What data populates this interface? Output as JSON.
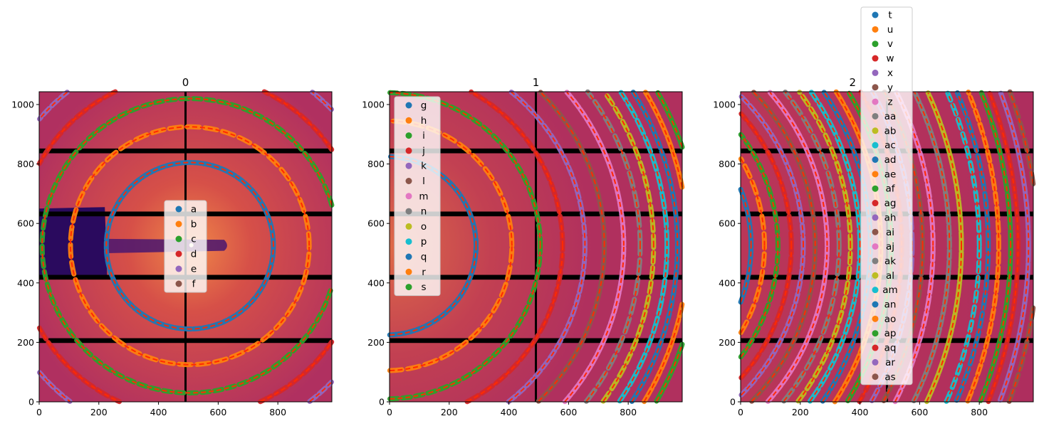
{
  "chart_data": [
    {
      "type": "image-with-ring-overlay",
      "title": "0",
      "xlim": [
        0,
        981
      ],
      "ylim": [
        0,
        1043
      ],
      "xticks": [
        0,
        200,
        400,
        600,
        800
      ],
      "yticks": [
        0,
        200,
        400,
        600,
        800,
        1000
      ],
      "ring_center": [
        505,
        525
      ],
      "rings": [
        {
          "name": "a",
          "color": "#1f77b4",
          "radius": 280
        },
        {
          "name": "b",
          "color": "#ff7f0e",
          "radius": 400
        },
        {
          "name": "c",
          "color": "#2ca02c",
          "radius": 495
        },
        {
          "name": "d",
          "color": "#d62728",
          "radius": 575
        },
        {
          "name": "e",
          "color": "#9467bd",
          "radius": 660
        },
        {
          "name": "f",
          "color": "#8c564b",
          "radius": 730
        }
      ],
      "legend_placement": "center"
    },
    {
      "type": "image-with-ring-overlay",
      "title": "1",
      "xlim": [
        0,
        981
      ],
      "ylim": [
        0,
        1043
      ],
      "xticks": [
        0,
        200,
        400,
        600,
        800
      ],
      "yticks": [
        0,
        200,
        400,
        600,
        800,
        1000
      ],
      "ring_center": [
        -10,
        525
      ],
      "rings": [
        {
          "name": "g",
          "color": "#1f77b4",
          "radius": 300
        },
        {
          "name": "h",
          "color": "#ff7f0e",
          "radius": 420
        },
        {
          "name": "i",
          "color": "#2ca02c",
          "radius": 515
        },
        {
          "name": "j",
          "color": "#d62728",
          "radius": 590
        },
        {
          "name": "k",
          "color": "#9467bd",
          "radius": 665
        },
        {
          "name": "l",
          "color": "#8c564b",
          "radius": 730
        },
        {
          "name": "m",
          "color": "#e377c2",
          "radius": 795
        },
        {
          "name": "n",
          "color": "#7f7f7f",
          "radius": 850
        },
        {
          "name": "o",
          "color": "#bcbd22",
          "radius": 895
        },
        {
          "name": "p",
          "color": "#17becf",
          "radius": 940
        },
        {
          "name": "q",
          "color": "#1f77b4",
          "radius": 975
        },
        {
          "name": "r",
          "color": "#ff7f0e",
          "radius": 1010
        },
        {
          "name": "s",
          "color": "#2ca02c",
          "radius": 1045
        }
      ],
      "legend_placement": "upper left"
    },
    {
      "type": "image-with-ring-overlay",
      "title": "2",
      "xlim": [
        0,
        981
      ],
      "ylim": [
        0,
        1043
      ],
      "xticks": [
        0,
        200,
        400,
        600,
        800
      ],
      "yticks": [
        0,
        200,
        400,
        600,
        800,
        1000
      ],
      "ring_center": [
        -500,
        525
      ],
      "rings": [
        {
          "name": "t",
          "color": "#1f77b4",
          "radius": 535
        },
        {
          "name": "u",
          "color": "#ff7f0e",
          "radius": 580
        },
        {
          "name": "v",
          "color": "#2ca02c",
          "radius": 625
        },
        {
          "name": "w",
          "color": "#d62728",
          "radius": 670
        },
        {
          "name": "x",
          "color": "#9467bd",
          "radius": 710
        },
        {
          "name": "y",
          "color": "#8c564b",
          "radius": 750
        },
        {
          "name": "z",
          "color": "#e377c2",
          "radius": 790
        },
        {
          "name": "aa",
          "color": "#7f7f7f",
          "radius": 830
        },
        {
          "name": "ab",
          "color": "#bcbd22",
          "radius": 868
        },
        {
          "name": "ac",
          "color": "#17becf",
          "radius": 900
        },
        {
          "name": "ad",
          "color": "#1f77b4",
          "radius": 935
        },
        {
          "name": "ae",
          "color": "#ff7f0e",
          "radius": 970
        },
        {
          "name": "af",
          "color": "#2ca02c",
          "radius": 1005
        },
        {
          "name": "ag",
          "color": "#d62728",
          "radius": 1040
        },
        {
          "name": "ah",
          "color": "#9467bd",
          "radius": 1075
        },
        {
          "name": "ai",
          "color": "#8c564b",
          "radius": 1110
        },
        {
          "name": "aj",
          "color": "#e377c2",
          "radius": 1145
        },
        {
          "name": "ak",
          "color": "#7f7f7f",
          "radius": 1200
        },
        {
          "name": "al",
          "color": "#bcbd22",
          "radius": 1240
        },
        {
          "name": "am",
          "color": "#17becf",
          "radius": 1300
        },
        {
          "name": "an",
          "color": "#1f77b4",
          "radius": 1330
        },
        {
          "name": "ao",
          "color": "#ff7f0e",
          "radius": 1365
        },
        {
          "name": "ap",
          "color": "#2ca02c",
          "radius": 1405
        },
        {
          "name": "aq",
          "color": "#d62728",
          "radius": 1430
        },
        {
          "name": "ar",
          "color": "#9467bd",
          "radius": 1465
        },
        {
          "name": "as",
          "color": "#8c564b",
          "radius": 1495
        }
      ],
      "legend_placement": "upper center (outside top)"
    }
  ],
  "colors": {
    "image_background": "#b03060",
    "image_center": "#e0603c",
    "fit_line": "#ff2a00",
    "detector_gap": "#000000",
    "beamstop": "#2a0a5e"
  }
}
